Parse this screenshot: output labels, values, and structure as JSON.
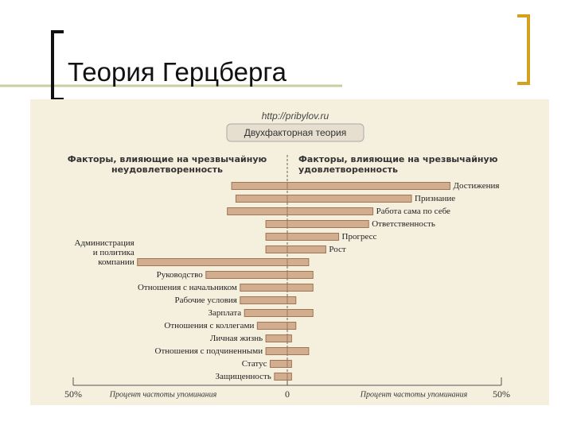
{
  "page_title": "Теория Герцберга",
  "chart_data": {
    "type": "diverging-bar",
    "source": "http://pribylov.ru",
    "title": "Двухфакторная теория",
    "categories": [
      "Достижения",
      "Признание",
      "Работа сама по себе",
      "Ответственность",
      "Прогресс",
      "Рост",
      "Администрация\nи политика\nкомпании",
      "Руководство",
      "Отношения с начальником",
      "Рабочие условия",
      "Зарплата",
      "Отношения с коллегами",
      "Личная жизнь",
      "Отношения с подчиненными",
      "Статус",
      "Защищенность"
    ],
    "series": [
      {
        "name": "Факторы, влияющие на чрезвычайную\nнеудовлетворенность",
        "color": "#d3ae8e",
        "values": [
          -13,
          -12,
          -14,
          -5,
          -5,
          -5,
          -35,
          -19,
          -11,
          -11,
          -10,
          -7,
          -5,
          -5,
          -4,
          -3
        ]
      },
      {
        "name": "Факторы, влияющие на чрезвычайную\nудовлетворенность",
        "color": "#d3ae8e",
        "values": [
          38,
          29,
          20,
          19,
          12,
          9,
          5,
          6,
          6,
          2,
          6,
          2,
          1,
          5,
          1,
          1
        ]
      }
    ],
    "xlim": [
      -50,
      50
    ],
    "xticks": [
      {
        "value": -50,
        "label": "50%"
      },
      0,
      {
        "value": 50,
        "label": "50%"
      }
    ],
    "x_axis_labels": [
      "Процент частоты упоминания",
      "Процент частоты упоминания"
    ]
  }
}
